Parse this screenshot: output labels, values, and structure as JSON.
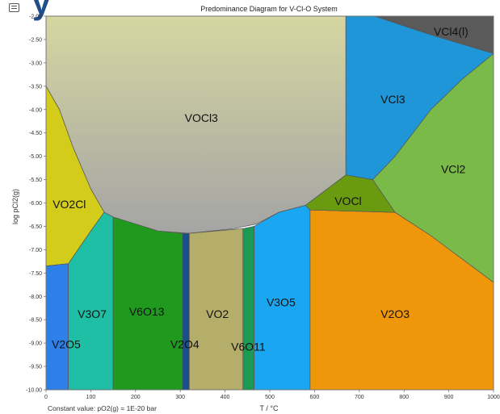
{
  "header": {
    "cropped_text": "y"
  },
  "chart_data": {
    "type": "area",
    "title": "Predominance Diagram for V-Cl-O System",
    "xlabel": "T / °C",
    "ylabel": "log pCl2(g)",
    "xlim": [
      0,
      1000
    ],
    "ylim": [
      -10.0,
      -2.0
    ],
    "xticks": [
      0,
      100,
      200,
      300,
      400,
      500,
      600,
      700,
      800,
      900,
      1000
    ],
    "yticks": [
      -2.0,
      -2.5,
      -3.0,
      -3.5,
      -4.0,
      -4.5,
      -5.0,
      -5.5,
      -6.0,
      -6.5,
      -7.0,
      -7.5,
      -8.0,
      -8.5,
      -9.0,
      -9.5,
      -10.0
    ],
    "ytick_labels": [
      "-2.00",
      "-2.50",
      "-3.00",
      "-3.50",
      "-4.00",
      "-4.50",
      "-5.00",
      "-5.50",
      "-6.00",
      "-6.50",
      "-7.00",
      "-7.50",
      "-8.00",
      "-8.50",
      "-9.00",
      "-9.50",
      "-10.00"
    ],
    "note": "Constant value: pO2(g) = 1E-20 bar",
    "regions": [
      {
        "label": "VOCl3",
        "color": "#c9c9a2",
        "gradient_to": "#a9a9a9",
        "label_at": [
          347,
          -4.2
        ],
        "polygon": [
          [
            0,
            -2.0
          ],
          [
            670,
            -2.0
          ],
          [
            670,
            -5.4
          ],
          [
            580,
            -6.05
          ],
          [
            520,
            -6.2
          ],
          [
            470,
            -6.45
          ],
          [
            420,
            -6.55
          ],
          [
            320,
            -6.65
          ],
          [
            250,
            -6.6
          ],
          [
            150,
            -6.3
          ],
          [
            130,
            -6.2
          ],
          [
            100,
            -5.7
          ],
          [
            60,
            -4.8
          ],
          [
            30,
            -4.0
          ],
          [
            0,
            -3.5
          ]
        ]
      },
      {
        "label": "VO2Cl",
        "color": "#d4cc1a",
        "label_at": [
          52,
          -6.05
        ],
        "polygon": [
          [
            0,
            -3.5
          ],
          [
            30,
            -4.0
          ],
          [
            60,
            -4.8
          ],
          [
            100,
            -5.7
          ],
          [
            130,
            -6.2
          ],
          [
            100,
            -6.6
          ],
          [
            50,
            -7.3
          ],
          [
            0,
            -7.35
          ]
        ]
      },
      {
        "label": "V2O5",
        "color": "#2e7fe8",
        "label_at": [
          45,
          -9.05
        ],
        "polygon": [
          [
            0,
            -7.35
          ],
          [
            50,
            -7.3
          ],
          [
            50,
            -10.0
          ],
          [
            0,
            -10.0
          ]
        ]
      },
      {
        "label": "V3O7",
        "color": "#1fbfa5",
        "label_at": [
          103,
          -8.4
        ],
        "polygon": [
          [
            50,
            -7.3
          ],
          [
            100,
            -6.6
          ],
          [
            130,
            -6.2
          ],
          [
            150,
            -6.3
          ],
          [
            150,
            -10.0
          ],
          [
            50,
            -10.0
          ]
        ]
      },
      {
        "label": "V6O13",
        "color": "#1f9a1f",
        "label_at": [
          225,
          -8.35
        ],
        "polygon": [
          [
            150,
            -6.3
          ],
          [
            250,
            -6.6
          ],
          [
            305,
            -6.65
          ],
          [
            305,
            -10.0
          ],
          [
            150,
            -10.0
          ]
        ]
      },
      {
        "label": "V2O4",
        "color": "#1a4f8c",
        "label_at": [
          310,
          -9.05
        ],
        "polygon": [
          [
            305,
            -6.65
          ],
          [
            320,
            -6.65
          ],
          [
            320,
            -10.0
          ],
          [
            305,
            -10.0
          ]
        ]
      },
      {
        "label": "VO2",
        "color": "#b5ad6a",
        "label_at": [
          383,
          -8.4
        ],
        "polygon": [
          [
            320,
            -6.65
          ],
          [
            440,
            -6.55
          ],
          [
            440,
            -10.0
          ],
          [
            320,
            -10.0
          ]
        ]
      },
      {
        "label": "V6O11",
        "color": "#1a9a55",
        "label_at": [
          452,
          -9.1
        ],
        "polygon": [
          [
            440,
            -6.55
          ],
          [
            465,
            -6.5
          ],
          [
            465,
            -10.0
          ],
          [
            440,
            -10.0
          ]
        ]
      },
      {
        "label": "V3O5",
        "color": "#1aa6f0",
        "label_at": [
          525,
          -8.15
        ],
        "polygon": [
          [
            465,
            -6.5
          ],
          [
            520,
            -6.2
          ],
          [
            580,
            -6.05
          ],
          [
            590,
            -6.15
          ],
          [
            590,
            -10.0
          ],
          [
            465,
            -10.0
          ]
        ]
      },
      {
        "label": "V2O3",
        "color": "#f0960a",
        "label_at": [
          780,
          -8.4
        ],
        "polygon": [
          [
            590,
            -6.15
          ],
          [
            780,
            -6.2
          ],
          [
            860,
            -6.7
          ],
          [
            1000,
            -7.7
          ],
          [
            1000,
            -10.0
          ],
          [
            590,
            -10.0
          ]
        ]
      },
      {
        "label": "VOCl",
        "color": "#6a9a10",
        "label_at": [
          675,
          -5.98
        ],
        "polygon": [
          [
            580,
            -6.05
          ],
          [
            670,
            -5.4
          ],
          [
            730,
            -5.5
          ],
          [
            780,
            -6.2
          ],
          [
            590,
            -6.15
          ]
        ]
      },
      {
        "label": "VCl2",
        "color": "#7aba48",
        "label_at": [
          910,
          -5.3
        ],
        "polygon": [
          [
            730,
            -5.5
          ],
          [
            780,
            -5.0
          ],
          [
            860,
            -4.0
          ],
          [
            930,
            -3.35
          ],
          [
            1000,
            -2.8
          ],
          [
            1000,
            -7.7
          ],
          [
            860,
            -6.7
          ],
          [
            780,
            -6.2
          ]
        ]
      },
      {
        "label": "VCl3",
        "color": "#1f96d8",
        "label_at": [
          775,
          -3.8
        ],
        "polygon": [
          [
            670,
            -2.0
          ],
          [
            735,
            -2.0
          ],
          [
            860,
            -2.4
          ],
          [
            1000,
            -2.8
          ],
          [
            930,
            -3.35
          ],
          [
            860,
            -4.0
          ],
          [
            780,
            -5.0
          ],
          [
            730,
            -5.5
          ],
          [
            670,
            -5.4
          ]
        ]
      },
      {
        "label": "VCl4(l)",
        "color": "#5a5a5a",
        "label_at": [
          905,
          -2.35
        ],
        "polygon": [
          [
            735,
            -2.0
          ],
          [
            1000,
            -2.0
          ],
          [
            1000,
            -2.8
          ],
          [
            860,
            -2.4
          ]
        ]
      }
    ]
  }
}
